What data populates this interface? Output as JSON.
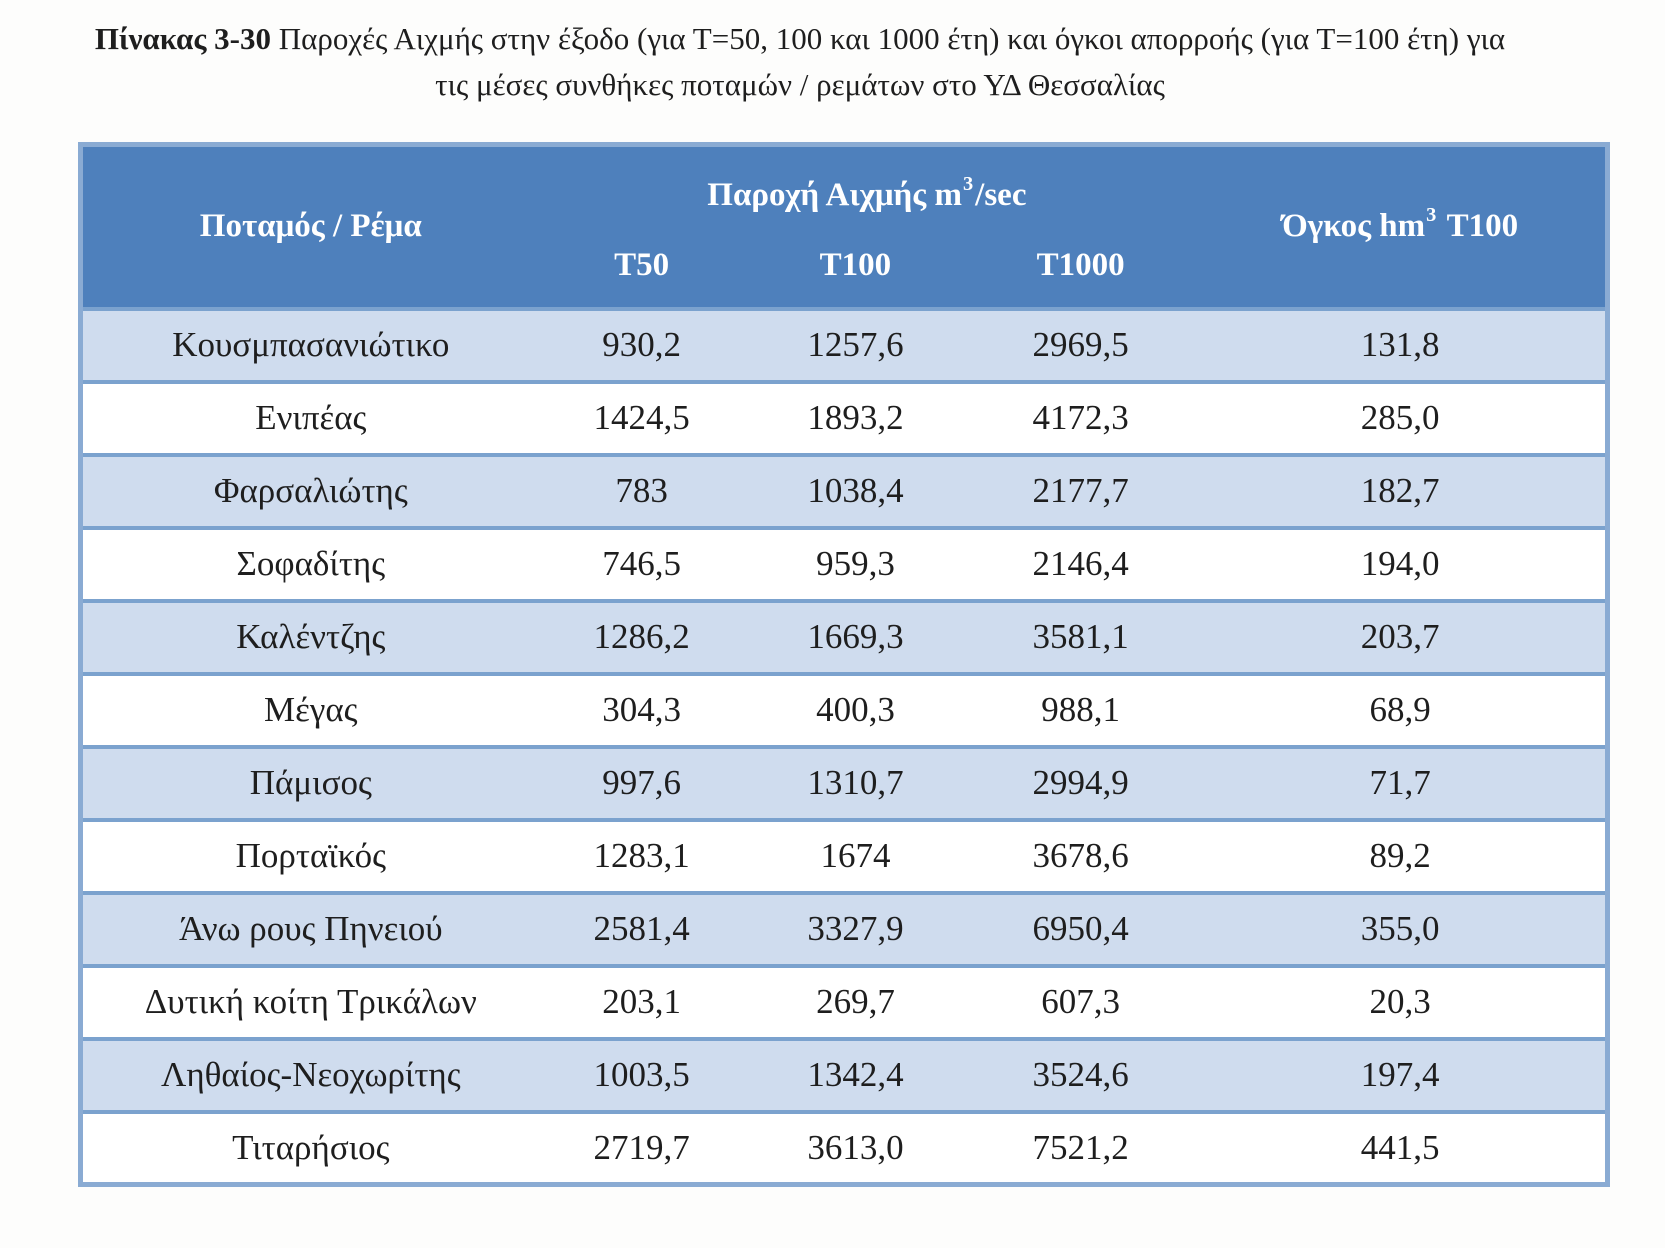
{
  "caption": {
    "label": "Πίνακας 3-30",
    "text": " Παροχές Αιχμής στην έξοδο (για Τ=50, 100 και 1000 έτη) και όγκοι απορροής (για Τ=100 έτη) για τις μέσες συνθήκες ποταμών / ρεμάτων στο ΥΔ Θεσσαλίας"
  },
  "colors": {
    "header_fill": "#4e80bc",
    "header_text": "#ffffff",
    "row_alt_fill": "#cfdcee",
    "row_fill": "#ffffff",
    "border_inner": "#7ba2ce",
    "border_outer": "#8aabd3",
    "body_text": "#1e1e1e"
  },
  "table": {
    "header": {
      "river": "Ποταμός / Ρέμα",
      "peak_flow": {
        "text": "Παροχή Αιχμής m",
        "sup": "3",
        "unit": "/sec"
      },
      "volume": {
        "text": "Όγκος hm",
        "sup": "3",
        "suffix": " Τ100"
      },
      "t50": "Τ50",
      "t100": "Τ100",
      "t1000": "Τ1000"
    },
    "rows": [
      {
        "river": "Κουσμπασανιώτικο",
        "t50": "930,2",
        "t100": "1257,6",
        "t1000": "2969,5",
        "volume": "131,8"
      },
      {
        "river": "Ενιπέας",
        "t50": "1424,5",
        "t100": "1893,2",
        "t1000": "4172,3",
        "volume": "285,0"
      },
      {
        "river": "Φαρσαλιώτης",
        "t50": "783",
        "t100": "1038,4",
        "t1000": "2177,7",
        "volume": "182,7"
      },
      {
        "river": "Σοφαδίτης",
        "t50": "746,5",
        "t100": "959,3",
        "t1000": "2146,4",
        "volume": "194,0"
      },
      {
        "river": "Καλέντζης",
        "t50": "1286,2",
        "t100": "1669,3",
        "t1000": "3581,1",
        "volume": "203,7"
      },
      {
        "river": "Μέγας",
        "t50": "304,3",
        "t100": "400,3",
        "t1000": "988,1",
        "volume": "68,9"
      },
      {
        "river": "Πάμισος",
        "t50": "997,6",
        "t100": "1310,7",
        "t1000": "2994,9",
        "volume": "71,7"
      },
      {
        "river": "Πορταϊκός",
        "t50": "1283,1",
        "t100": "1674",
        "t1000": "3678,6",
        "volume": "89,2"
      },
      {
        "river": "Άνω ρους Πηνειού",
        "t50": "2581,4",
        "t100": "3327,9",
        "t1000": "6950,4",
        "volume": "355,0"
      },
      {
        "river": "Δυτική κοίτη Τρικάλων",
        "t50": "203,1",
        "t100": "269,7",
        "t1000": "607,3",
        "volume": "20,3"
      },
      {
        "river": "Ληθαίος-Νεοχωρίτης",
        "t50": "1003,5",
        "t100": "1342,4",
        "t1000": "3524,6",
        "volume": "197,4"
      },
      {
        "river": "Τιταρήσιος",
        "t50": "2719,7",
        "t100": "3613,0",
        "t1000": "7521,2",
        "volume": "441,5"
      }
    ]
  }
}
